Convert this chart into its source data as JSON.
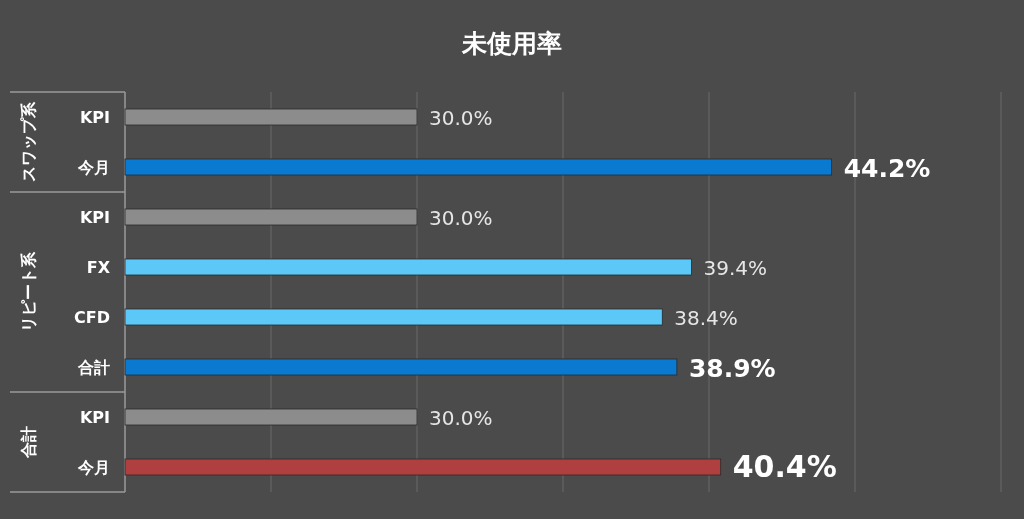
{
  "chart_data": {
    "type": "bar",
    "orientation": "horizontal",
    "title": "未使用率",
    "categories": [
      "KPI",
      "今月",
      "KPI",
      "FX",
      "CFD",
      "合計",
      "KPI",
      "今月"
    ],
    "values": [
      30.0,
      44.2,
      30.0,
      39.4,
      38.4,
      38.9,
      30.0,
      40.4
    ],
    "colors": [
      "#8c8c8c",
      "#0a7ad0",
      "#8c8c8c",
      "#5cc8f8",
      "#5cc8f8",
      "#0a7ad0",
      "#8c8c8c",
      "#b04040"
    ],
    "value_labels": [
      "30.0%",
      "**44.2%**",
      "30.0%",
      "39.4%",
      "38.4%",
      "**38.9%**",
      "30.0%",
      "**40.4%**"
    ],
    "annotations": [
      "スワップ系",
      "リピート系",
      "合計"
    ],
    "xlim": [
      20,
      50
    ],
    "xticks": [
      {
        "value": 25,
        "label": null
      },
      {
        "value": 30,
        "label": null
      },
      {
        "value": 35,
        "label": null
      },
      {
        "value": 40,
        "label": null
      },
      {
        "value": 45,
        "label": null
      },
      {
        "value": 50,
        "label": null
      }
    ],
    "grid": "x",
    "tick_labels": "y"
  }
}
